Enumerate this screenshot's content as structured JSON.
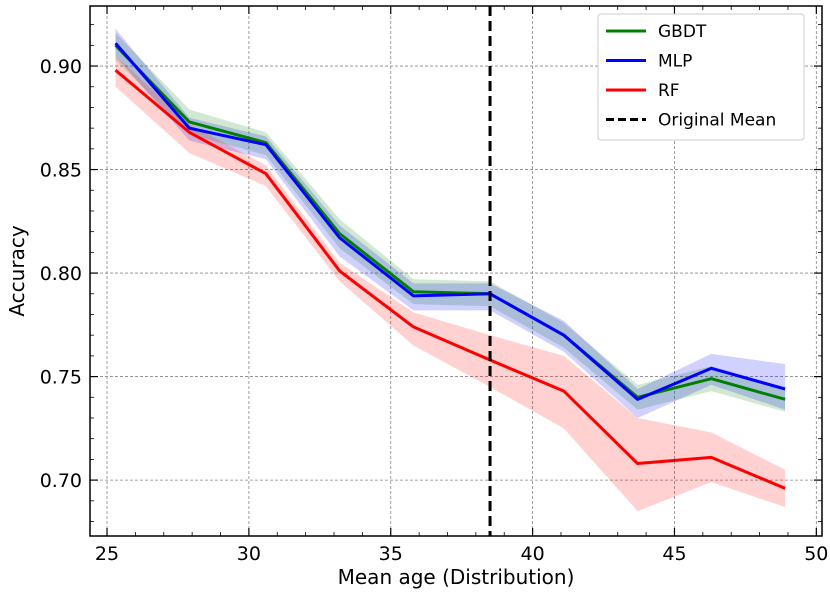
{
  "chart_data": {
    "type": "line",
    "xlabel": "Mean age (Distribution)",
    "ylabel": "Accuracy",
    "xlim": [
      24.4,
      50.2
    ],
    "ylim": [
      0.673,
      0.929
    ],
    "xticks": [
      25,
      30,
      35,
      40,
      45,
      50
    ],
    "yticks": [
      0.7,
      0.75,
      0.8,
      0.85,
      0.9
    ],
    "xtick_labels": [
      "25",
      "30",
      "35",
      "40",
      "45",
      "50"
    ],
    "ytick_labels": [
      "0.70",
      "0.75",
      "0.80",
      "0.85",
      "0.90"
    ],
    "grid": true,
    "legend_position": "top-right",
    "x": [
      25.3,
      27.9,
      30.6,
      33.2,
      35.8,
      38.5,
      41.1,
      43.7,
      46.3,
      48.9
    ],
    "series": [
      {
        "name": "GBDT",
        "color": "#008000",
        "values": [
          0.91,
          0.873,
          0.863,
          0.819,
          0.791,
          0.79,
          0.77,
          0.74,
          0.749,
          0.739
        ],
        "lower": [
          0.903,
          0.867,
          0.857,
          0.812,
          0.785,
          0.784,
          0.764,
          0.734,
          0.743,
          0.733
        ],
        "upper": [
          0.916,
          0.879,
          0.868,
          0.826,
          0.797,
          0.796,
          0.776,
          0.746,
          0.755,
          0.745
        ]
      },
      {
        "name": "MLP",
        "color": "#0000ff",
        "values": [
          0.911,
          0.87,
          0.862,
          0.817,
          0.789,
          0.79,
          0.77,
          0.739,
          0.754,
          0.744
        ],
        "lower": [
          0.905,
          0.864,
          0.855,
          0.808,
          0.782,
          0.782,
          0.762,
          0.73,
          0.746,
          0.734
        ],
        "upper": [
          0.918,
          0.875,
          0.866,
          0.823,
          0.795,
          0.795,
          0.777,
          0.744,
          0.761,
          0.756
        ]
      },
      {
        "name": "RF",
        "color": "#ff0000",
        "values": [
          0.898,
          0.868,
          0.848,
          0.801,
          0.774,
          0.758,
          0.743,
          0.708,
          0.711,
          0.696
        ],
        "lower": [
          0.89,
          0.858,
          0.842,
          0.796,
          0.765,
          0.745,
          0.725,
          0.685,
          0.699,
          0.687
        ],
        "upper": [
          0.905,
          0.872,
          0.852,
          0.805,
          0.781,
          0.77,
          0.76,
          0.73,
          0.723,
          0.705
        ]
      }
    ],
    "reference_line": {
      "name": "Original Mean",
      "x": 38.5,
      "color": "#000000",
      "style": "dashed"
    }
  }
}
